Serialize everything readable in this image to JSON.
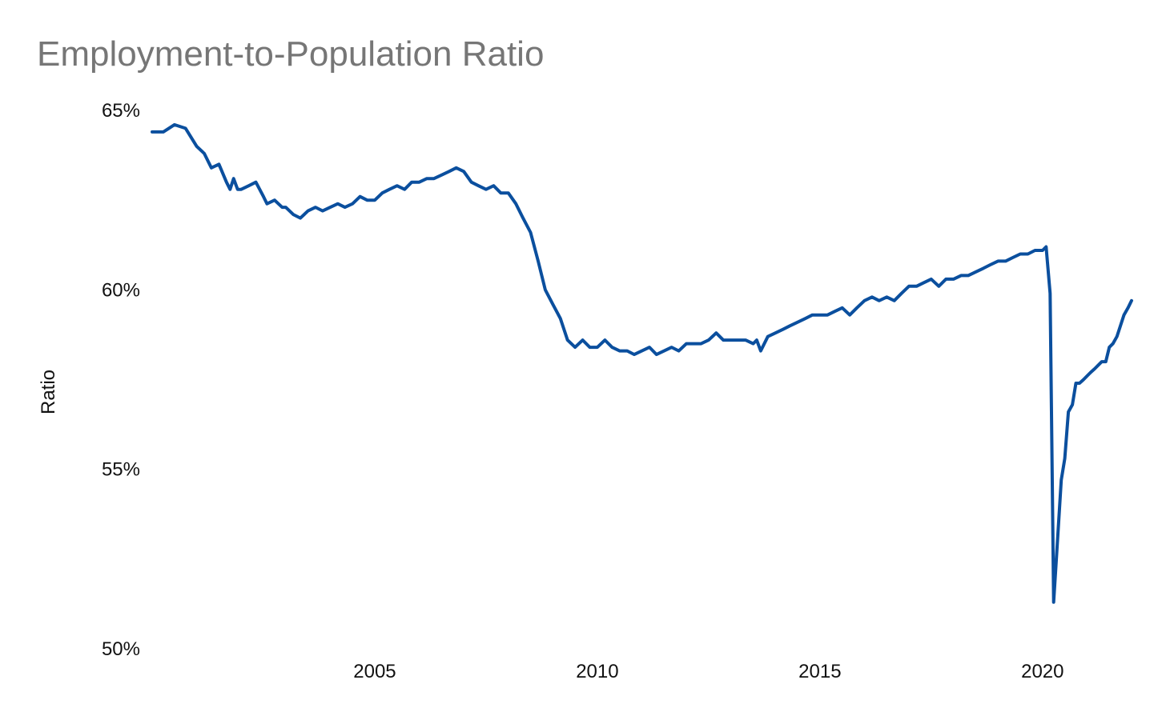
{
  "chart_data": {
    "type": "line",
    "title": "Employment-to-Population Ratio",
    "xlabel": "",
    "ylabel": "Ratio",
    "xlim": [
      2000.0,
      2022.0
    ],
    "ylim": [
      50,
      65
    ],
    "x_ticks": [
      2005,
      2010,
      2015,
      2020
    ],
    "x_tick_labels": [
      "2005",
      "2010",
      "2015",
      "2020"
    ],
    "y_ticks": [
      50,
      55,
      60,
      65
    ],
    "y_tick_labels": [
      "50%",
      "55%",
      "60%",
      "65%"
    ],
    "grid": false,
    "legend": "none",
    "line_color": "#0b4f9e",
    "series": [
      {
        "x": [
          2000.0,
          2000.25,
          2000.5,
          2000.75,
          2001.0,
          2001.17,
          2001.33,
          2001.5,
          2001.67,
          2001.75,
          2001.83,
          2001.92,
          2002.0,
          2002.17,
          2002.33,
          2002.5,
          2002.58,
          2002.75,
          2002.92,
          2003.0,
          2003.17,
          2003.33,
          2003.5,
          2003.67,
          2003.83,
          2004.0,
          2004.17,
          2004.33,
          2004.5,
          2004.67,
          2004.83,
          2005.0,
          2005.17,
          2005.33,
          2005.5,
          2005.67,
          2005.83,
          2006.0,
          2006.17,
          2006.33,
          2006.5,
          2006.67,
          2006.83,
          2007.0,
          2007.17,
          2007.33,
          2007.5,
          2007.67,
          2007.83,
          2008.0,
          2008.17,
          2008.33,
          2008.5,
          2008.67,
          2008.83,
          2009.0,
          2009.17,
          2009.33,
          2009.5,
          2009.67,
          2009.83,
          2010.0,
          2010.17,
          2010.33,
          2010.5,
          2010.67,
          2010.83,
          2011.0,
          2011.17,
          2011.33,
          2011.5,
          2011.67,
          2011.83,
          2012.0,
          2012.17,
          2012.33,
          2012.5,
          2012.67,
          2012.83,
          2013.0,
          2013.17,
          2013.33,
          2013.5,
          2013.58,
          2013.67,
          2013.83,
          2014.0,
          2014.17,
          2014.33,
          2014.5,
          2014.67,
          2014.83,
          2015.0,
          2015.17,
          2015.33,
          2015.5,
          2015.67,
          2015.83,
          2016.0,
          2016.17,
          2016.33,
          2016.5,
          2016.67,
          2016.83,
          2017.0,
          2017.17,
          2017.33,
          2017.5,
          2017.67,
          2017.83,
          2018.0,
          2018.17,
          2018.33,
          2018.5,
          2018.67,
          2018.83,
          2019.0,
          2019.17,
          2019.33,
          2019.5,
          2019.67,
          2019.83,
          2020.0,
          2020.08,
          2020.17,
          2020.25,
          2020.33,
          2020.42,
          2020.5,
          2020.58,
          2020.67,
          2020.75,
          2020.83,
          2020.92,
          2021.0,
          2021.08,
          2021.17,
          2021.25,
          2021.33,
          2021.42,
          2021.5,
          2021.58,
          2021.67,
          2021.75,
          2021.83,
          2021.92,
          2022.0
        ],
        "values": [
          64.4,
          64.4,
          64.6,
          64.5,
          64.0,
          63.8,
          63.4,
          63.5,
          63.0,
          62.8,
          63.1,
          62.8,
          62.8,
          62.9,
          63.0,
          62.6,
          62.4,
          62.5,
          62.3,
          62.3,
          62.1,
          62.0,
          62.2,
          62.3,
          62.2,
          62.3,
          62.4,
          62.3,
          62.4,
          62.6,
          62.5,
          62.5,
          62.7,
          62.8,
          62.9,
          62.8,
          63.0,
          63.0,
          63.1,
          63.1,
          63.2,
          63.3,
          63.4,
          63.3,
          63.0,
          62.9,
          62.8,
          62.9,
          62.7,
          62.7,
          62.4,
          62.0,
          61.6,
          60.8,
          60.0,
          59.6,
          59.2,
          58.6,
          58.4,
          58.6,
          58.4,
          58.4,
          58.6,
          58.4,
          58.3,
          58.3,
          58.2,
          58.3,
          58.4,
          58.2,
          58.3,
          58.4,
          58.3,
          58.5,
          58.5,
          58.5,
          58.6,
          58.8,
          58.6,
          58.6,
          58.6,
          58.6,
          58.5,
          58.6,
          58.3,
          58.7,
          58.8,
          58.9,
          59.0,
          59.1,
          59.2,
          59.3,
          59.3,
          59.3,
          59.4,
          59.5,
          59.3,
          59.5,
          59.7,
          59.8,
          59.7,
          59.8,
          59.7,
          59.9,
          60.1,
          60.1,
          60.2,
          60.3,
          60.1,
          60.3,
          60.3,
          60.4,
          60.4,
          60.5,
          60.6,
          60.7,
          60.8,
          60.8,
          60.9,
          61.0,
          61.0,
          61.1,
          61.1,
          61.2,
          59.9,
          51.3,
          52.9,
          54.7,
          55.3,
          56.6,
          56.8,
          57.4,
          57.4,
          57.5,
          57.6,
          57.7,
          57.8,
          57.9,
          58.0,
          58.0,
          58.4,
          58.5,
          58.7,
          59.0,
          59.3,
          59.5,
          59.7
        ],
        "last_value": 59.7
      }
    ]
  }
}
